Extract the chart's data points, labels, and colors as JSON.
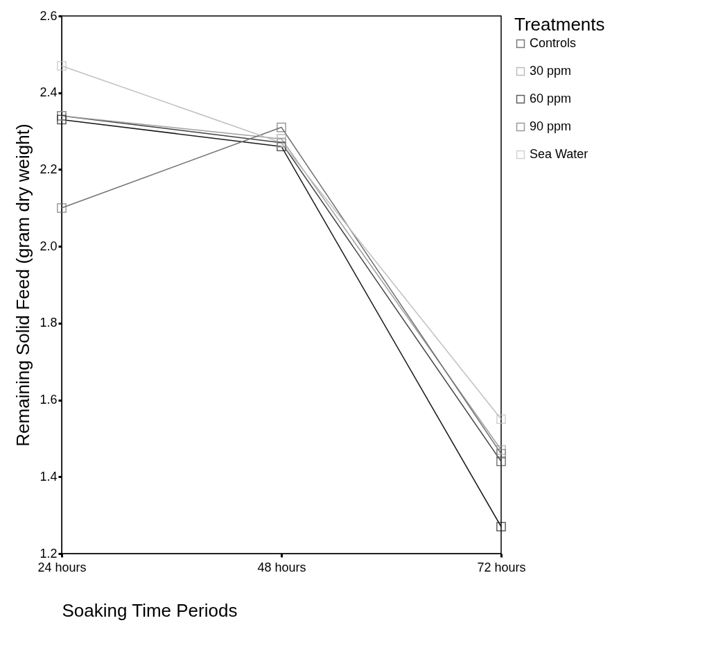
{
  "chart_data": {
    "type": "line",
    "xlabel": "Soaking Time Periods",
    "ylabel": "Remaining Solid Feed (gram dry weight)",
    "legend_title": "Treatments",
    "categories": [
      "24 hours",
      "48 hours",
      "72 hours"
    ],
    "series": [
      {
        "name": "Controls",
        "color": "#404040",
        "values": [
          2.34,
          2.27,
          1.44
        ]
      },
      {
        "name": "30 ppm",
        "color": "#a0a0a0",
        "values": [
          2.34,
          2.28,
          1.47
        ]
      },
      {
        "name": "60 ppm",
        "color": "#1a1a1a",
        "values": [
          2.33,
          2.26,
          1.27
        ]
      },
      {
        "name": "90 ppm",
        "color": "#707070",
        "values": [
          2.1,
          2.31,
          1.46
        ]
      },
      {
        "name": "Sea Water",
        "color": "#c0c0c0",
        "values": [
          2.47,
          2.27,
          1.55
        ]
      }
    ],
    "ylim": [
      1.2,
      2.6
    ],
    "yticks": [
      1.2,
      1.4,
      1.6,
      1.8,
      {
        "value": 2,
        "label": "2.0"
      },
      2.2,
      2.4,
      2.6
    ],
    "grid": false,
    "legend": "right",
    "marker": "square",
    "line_style": "solid"
  }
}
